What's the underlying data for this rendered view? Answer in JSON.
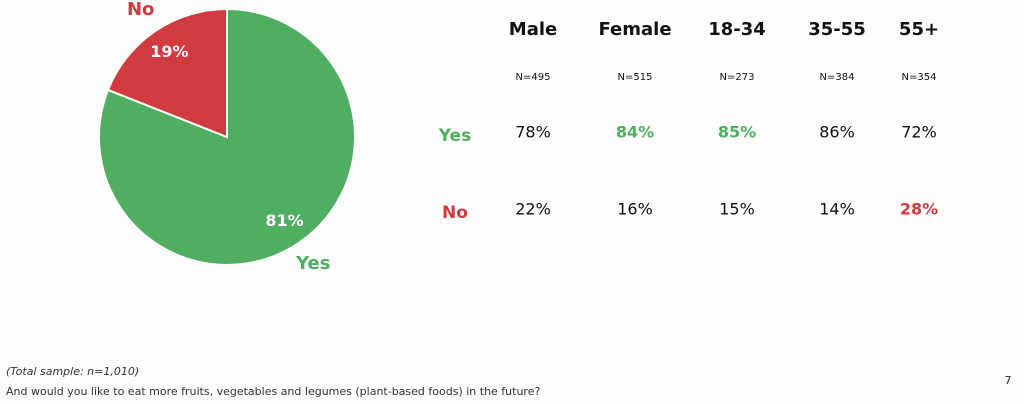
{
  "chart_data": {
    "type": "pie",
    "categories": [
      "Yes",
      "No"
    ],
    "values": [
      81,
      19
    ],
    "value_labels": [
      "81%",
      "19%"
    ],
    "colors": [
      "#4fae60",
      "#d13a3e"
    ]
  },
  "table": {
    "columns": [
      "Male",
      "Female",
      "18-34",
      "35-55",
      "55+"
    ],
    "sample_sizes": [
      "N=495",
      "N=515",
      "N=273",
      "N=384",
      "N=354"
    ],
    "rows": [
      {
        "label": "Yes",
        "color": "#4fae60",
        "cells": [
          "78%",
          "84%",
          "85%",
          "86%",
          "72%"
        ],
        "highlight": [
          false,
          true,
          true,
          false,
          false
        ]
      },
      {
        "label": "No",
        "color": "#d13a3e",
        "cells": [
          "22%",
          "16%",
          "15%",
          "14%",
          "28%"
        ],
        "highlight": [
          false,
          false,
          false,
          false,
          true
        ]
      }
    ]
  },
  "footnote": "(Total sample: n=1,010)",
  "question": "And would you like to eat more fruits, vegetables and legumes (plant-based foods) in the future?",
  "page_number": "7"
}
